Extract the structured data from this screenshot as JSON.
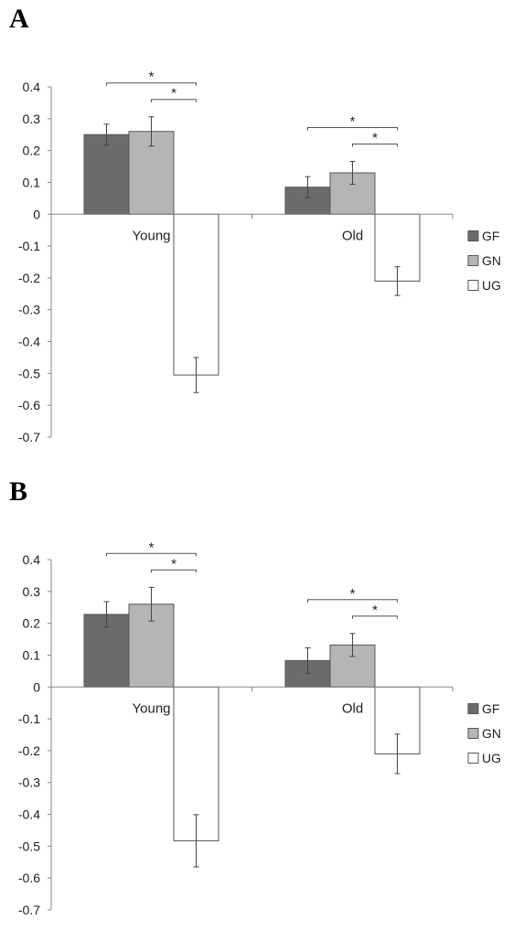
{
  "chart_data": [
    {
      "panel_label": "A",
      "type": "bar",
      "categories": [
        "Young",
        "Old"
      ],
      "series": [
        {
          "name": "GF",
          "values": [
            0.25,
            0.085
          ],
          "errors": [
            0.033,
            0.033
          ],
          "color": "#6b6b6b"
        },
        {
          "name": "GN",
          "values": [
            0.26,
            0.13
          ],
          "errors": [
            0.046,
            0.036
          ],
          "color": "#b5b5b5"
        },
        {
          "name": "UG",
          "values": [
            -0.505,
            -0.21
          ],
          "errors": [
            0.055,
            0.045
          ],
          "color": "#ffffff"
        }
      ],
      "yticks": [
        "0.4",
        "0.3",
        "0.2",
        "0.1",
        "0",
        "-0.1",
        "-0.2",
        "-0.3",
        "-0.4",
        "-0.5",
        "-0.6",
        "-0.7"
      ],
      "ylim": [
        -0.7,
        0.4
      ],
      "significance": [
        {
          "category": "Young",
          "from": "GF",
          "to": "UG",
          "label": "*"
        },
        {
          "category": "Young",
          "from": "GN",
          "to": "UG",
          "label": "*"
        },
        {
          "category": "Old",
          "from": "GF",
          "to": "UG",
          "label": "*"
        },
        {
          "category": "Old",
          "from": "GN",
          "to": "UG",
          "label": "*"
        }
      ],
      "legend": "right",
      "grid": false
    },
    {
      "panel_label": "B",
      "type": "bar",
      "categories": [
        "Young",
        "Old"
      ],
      "series": [
        {
          "name": "GF",
          "values": [
            0.228,
            0.083
          ],
          "errors": [
            0.04,
            0.04
          ],
          "color": "#6b6b6b"
        },
        {
          "name": "GN",
          "values": [
            0.26,
            0.132
          ],
          "errors": [
            0.053,
            0.036
          ],
          "color": "#b5b5b5"
        },
        {
          "name": "UG",
          "values": [
            -0.483,
            -0.21
          ],
          "errors": [
            0.082,
            0.062
          ],
          "color": "#ffffff"
        }
      ],
      "yticks": [
        "0.4",
        "0.3",
        "0.2",
        "0.1",
        "0",
        "-0.1",
        "-0.2",
        "-0.3",
        "-0.4",
        "-0.5",
        "-0.6",
        "-0.7"
      ],
      "ylim": [
        -0.7,
        0.4
      ],
      "significance": [
        {
          "category": "Young",
          "from": "GF",
          "to": "UG",
          "label": "*"
        },
        {
          "category": "Young",
          "from": "GN",
          "to": "UG",
          "label": "*"
        },
        {
          "category": "Old",
          "from": "GF",
          "to": "UG",
          "label": "*"
        },
        {
          "category": "Old",
          "from": "GN",
          "to": "UG",
          "label": "*"
        }
      ],
      "legend": "right",
      "grid": false
    }
  ]
}
